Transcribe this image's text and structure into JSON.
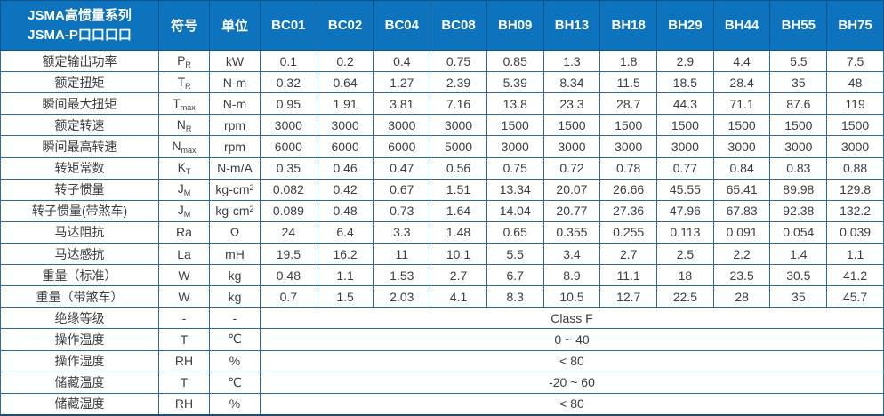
{
  "header": {
    "title_line1": "JSMA高惯量系列",
    "title_line2": "JSMA-P口口口口",
    "symbol_col": "符号",
    "unit_col": "单位",
    "models": [
      "BC01",
      "BC02",
      "BC04",
      "BC08",
      "BH09",
      "BH13",
      "BH18",
      "BH29",
      "BH44",
      "BH55",
      "BH75"
    ]
  },
  "colors": {
    "header_bg": "#0e73bd",
    "header_border": "#09568e",
    "grid_border": "#2b6aa3",
    "text": "#3d3d3d",
    "header_text": "#ffffff"
  },
  "rows": [
    {
      "label": "额定输出功率",
      "symbol": {
        "base": "P",
        "sub": "R"
      },
      "unit": {
        "base": "kW"
      },
      "values": [
        "0.1",
        "0.2",
        "0.4",
        "0.75",
        "0.85",
        "1.3",
        "1.8",
        "2.9",
        "4.4",
        "5.5",
        "7.5"
      ]
    },
    {
      "label": "额定扭矩",
      "symbol": {
        "base": "T",
        "sub": "R"
      },
      "unit": {
        "base": "N-m"
      },
      "values": [
        "0.32",
        "0.64",
        "1.27",
        "2.39",
        "5.39",
        "8.34",
        "11.5",
        "18.5",
        "28.4",
        "35",
        "48"
      ]
    },
    {
      "label": "瞬间最大扭矩",
      "symbol": {
        "base": "T",
        "sub": "max"
      },
      "unit": {
        "base": "N-m"
      },
      "values": [
        "0.95",
        "1.91",
        "3.81",
        "7.16",
        "13.8",
        "23.3",
        "28.7",
        "44.3",
        "71.1",
        "87.6",
        "119"
      ]
    },
    {
      "label": "额定转速",
      "symbol": {
        "base": "N",
        "sub": "R"
      },
      "unit": {
        "base": "rpm"
      },
      "values": [
        "3000",
        "3000",
        "3000",
        "3000",
        "1500",
        "1500",
        "1500",
        "1500",
        "1500",
        "1500",
        "1500"
      ]
    },
    {
      "label": "瞬间最高转速",
      "symbol": {
        "base": "N",
        "sub": "max"
      },
      "unit": {
        "base": "rpm"
      },
      "values": [
        "6000",
        "6000",
        "6000",
        "5000",
        "3000",
        "3000",
        "3000",
        "3000",
        "3000",
        "3000",
        "3000"
      ]
    },
    {
      "label": "转矩常数",
      "symbol": {
        "base": "K",
        "sub": "T"
      },
      "unit": {
        "base": "N-m/A"
      },
      "values": [
        "0.35",
        "0.46",
        "0.47",
        "0.56",
        "0.75",
        "0.72",
        "0.78",
        "0.77",
        "0.84",
        "0.83",
        "0.88"
      ]
    },
    {
      "label": "转子惯量",
      "symbol": {
        "base": "J",
        "sub": "M"
      },
      "unit": {
        "base": "kg-cm",
        "sup": "2"
      },
      "values": [
        "0.082",
        "0.42",
        "0.67",
        "1.51",
        "13.34",
        "20.07",
        "26.66",
        "45.55",
        "65.41",
        "89.98",
        "129.8"
      ]
    },
    {
      "label": "转子惯量(带煞车)",
      "symbol": {
        "base": "J",
        "sub": "M"
      },
      "unit": {
        "base": "kg-cm",
        "sup": "2"
      },
      "values": [
        "0.089",
        "0.48",
        "0.73",
        "1.64",
        "14.04",
        "20.77",
        "27.36",
        "47.96",
        "67.83",
        "92.38",
        "132.2"
      ]
    },
    {
      "label": "马达阻抗",
      "symbol": {
        "base": "Ra"
      },
      "unit": {
        "base": "Ω"
      },
      "values": [
        "24",
        "6.4",
        "3.3",
        "1.48",
        "0.65",
        "0.355",
        "0.255",
        "0.113",
        "0.091",
        "0.054",
        "0.039"
      ]
    },
    {
      "label": "马达感抗",
      "symbol": {
        "base": "La"
      },
      "unit": {
        "base": "mH"
      },
      "values": [
        "19.5",
        "16.2",
        "11",
        "10.1",
        "5.5",
        "3.4",
        "2.7",
        "2.5",
        "2.2",
        "1.4",
        "1.1"
      ]
    },
    {
      "label": "重量（标准）",
      "symbol": {
        "base": "W"
      },
      "unit": {
        "base": "kg"
      },
      "values": [
        "0.48",
        "1.1",
        "1.53",
        "2.7",
        "6.7",
        "8.9",
        "11.1",
        "18",
        "23.5",
        "30.5",
        "41.2"
      ]
    },
    {
      "label": "重量（带煞车）",
      "symbol": {
        "base": "W"
      },
      "unit": {
        "base": "kg"
      },
      "values": [
        "0.7",
        "1.5",
        "2.03",
        "4.1",
        "8.3",
        "10.5",
        "12.7",
        "22.5",
        "28",
        "35",
        "45.7"
      ]
    },
    {
      "label": "绝缘等级",
      "symbol": {
        "base": "-"
      },
      "unit": {
        "base": "-"
      },
      "merged": "Class F"
    },
    {
      "label": "操作温度",
      "symbol": {
        "base": "T"
      },
      "unit": {
        "base": "℃"
      },
      "merged": "0 ~ 40"
    },
    {
      "label": "操作湿度",
      "symbol": {
        "base": "RH"
      },
      "unit": {
        "base": "%"
      },
      "merged": "< 80"
    },
    {
      "label": "储藏温度",
      "symbol": {
        "base": "T"
      },
      "unit": {
        "base": "℃"
      },
      "merged": "-20 ~ 60"
    },
    {
      "label": "储藏湿度",
      "symbol": {
        "base": "RH"
      },
      "unit": {
        "base": "%"
      },
      "merged": "< 80"
    }
  ]
}
